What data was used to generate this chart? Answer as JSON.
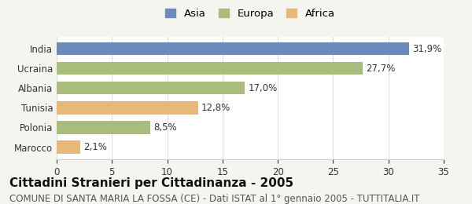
{
  "categories": [
    "India",
    "Ucraina",
    "Albania",
    "Tunisia",
    "Polonia",
    "Marocco"
  ],
  "values": [
    31.9,
    27.7,
    17.0,
    12.8,
    8.5,
    2.1
  ],
  "labels": [
    "31,9%",
    "27,7%",
    "17,0%",
    "12,8%",
    "8,5%",
    "2,1%"
  ],
  "colors": [
    "#6b8cba",
    "#a8bc7b",
    "#a8bc7b",
    "#e8b87a",
    "#a8bc7b",
    "#e8b87a"
  ],
  "legend_labels": [
    "Asia",
    "Europa",
    "Africa"
  ],
  "legend_colors": [
    "#6b8cba",
    "#a8bc7b",
    "#e8b87a"
  ],
  "xlim": [
    0,
    35
  ],
  "xticks": [
    0,
    5,
    10,
    15,
    20,
    25,
    30,
    35
  ],
  "title": "Cittadini Stranieri per Cittadinanza - 2005",
  "subtitle": "COMUNE DI SANTA MARIA LA FOSSA (CE) - Dati ISTAT al 1° gennaio 2005 - TUTTITALIA.IT",
  "background_color": "#f5f5f0",
  "bar_background": "#ffffff",
  "title_fontsize": 11,
  "subtitle_fontsize": 8.5,
  "label_fontsize": 8.5,
  "tick_fontsize": 8.5
}
